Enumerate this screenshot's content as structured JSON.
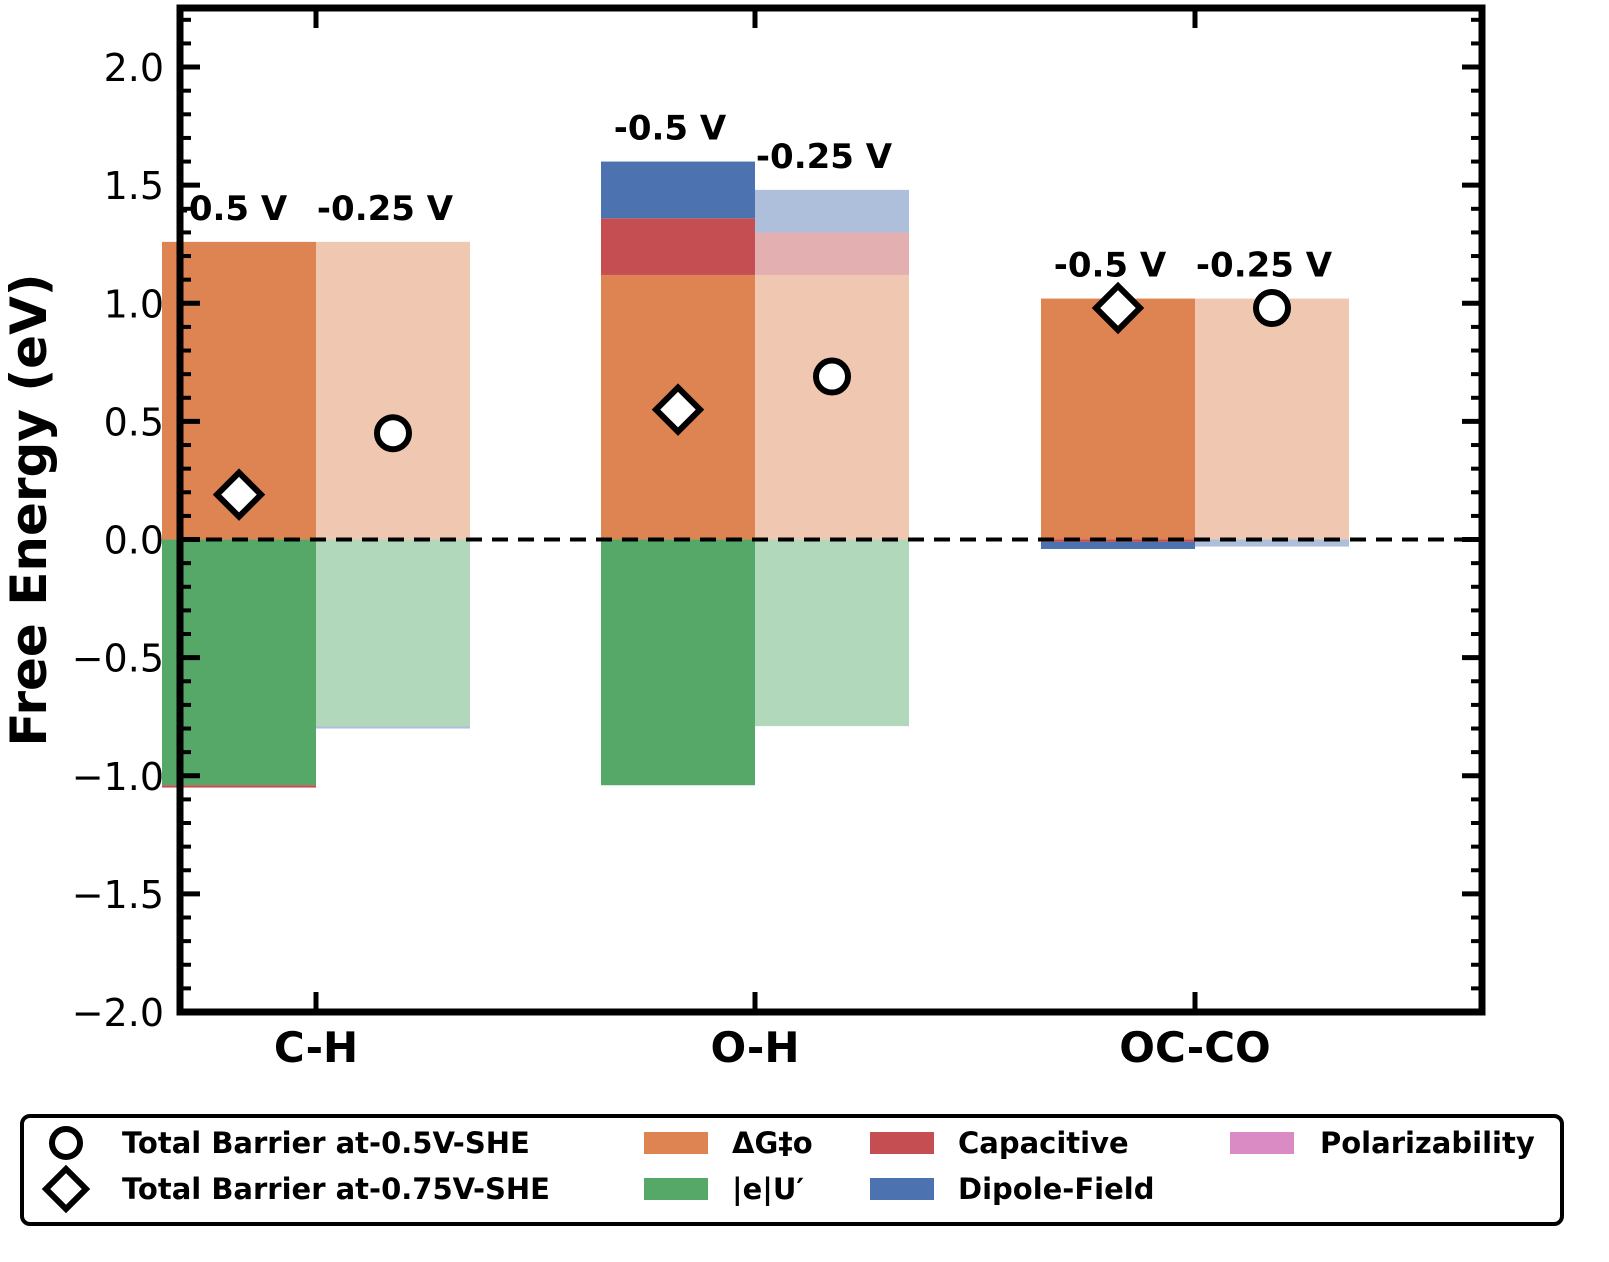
{
  "chart_data": {
    "type": "bar",
    "stacked": true,
    "ylabel": "Free Energy (eV)",
    "xlabel": "",
    "ylim": [
      -2.0,
      2.25
    ],
    "yticks": [
      -2.0,
      -1.5,
      -1.0,
      -0.5,
      0.0,
      0.5,
      1.0,
      1.5,
      2.0
    ],
    "ytick_labels": [
      "−2.0",
      "−1.5",
      "−1.0",
      "−0.5",
      "0.0",
      "0.5",
      "1.0",
      "1.5",
      "2.0"
    ],
    "zero_line": "dashed",
    "categories": [
      "C-H",
      "O-H",
      "OC-CO"
    ],
    "bar_labels": [
      "-0.5 V",
      "-0.25 V"
    ],
    "colors": {
      "dG": "#dd8452",
      "eU": "#55a868",
      "capacitive": "#c44e52",
      "dipole": "#4c72b0",
      "polarizability": "#da8bc3"
    },
    "series": [
      {
        "name": "ΔG‡o",
        "key": "dG",
        "bars": [
          [
            1.26,
            1.26
          ],
          [
            1.12,
            1.12
          ],
          [
            1.02,
            1.02
          ]
        ]
      },
      {
        "name": "|e|U′",
        "key": "eU",
        "bars": [
          [
            -1.04,
            -0.79
          ],
          [
            -1.04,
            -0.79
          ],
          [
            0.0,
            0.0
          ]
        ]
      },
      {
        "name": "Capacitive",
        "key": "capacitive",
        "bars": [
          [
            -0.01,
            0.0
          ],
          [
            0.24,
            0.18
          ],
          [
            -0.01,
            0.0
          ]
        ]
      },
      {
        "name": "Dipole-Field",
        "key": "dipole",
        "bars": [
          [
            0.0,
            -0.01
          ],
          [
            0.24,
            0.18
          ],
          [
            -0.03,
            -0.03
          ]
        ]
      },
      {
        "name": "Polarizability",
        "key": "polarizability",
        "bars": [
          [
            0.0,
            0.0
          ],
          [
            0.0,
            0.0
          ],
          [
            0.0,
            0.0
          ]
        ]
      }
    ],
    "markers": [
      {
        "name": "Total Barrier at-0.5V-SHE",
        "shape": "circle",
        "values": [
          0.45,
          0.69,
          0.98
        ]
      },
      {
        "name": "Total Barrier at-0.75V-SHE",
        "shape": "diamond",
        "values": [
          0.19,
          0.55,
          0.98
        ]
      }
    ],
    "legend": {
      "placement": "bottom",
      "entries": [
        {
          "label": "Total Barrier at-0.5V-SHE",
          "kind": "circle"
        },
        {
          "label": "Total Barrier at-0.75V-SHE",
          "kind": "diamond"
        },
        {
          "label": "ΔG‡o",
          "kind": "dG"
        },
        {
          "label": "|e|U′",
          "kind": "eU"
        },
        {
          "label": "Capacitive",
          "kind": "capacitive"
        },
        {
          "label": "Dipole-Field",
          "kind": "dipole"
        },
        {
          "label": "Polarizability",
          "kind": "polarizability"
        }
      ]
    }
  }
}
